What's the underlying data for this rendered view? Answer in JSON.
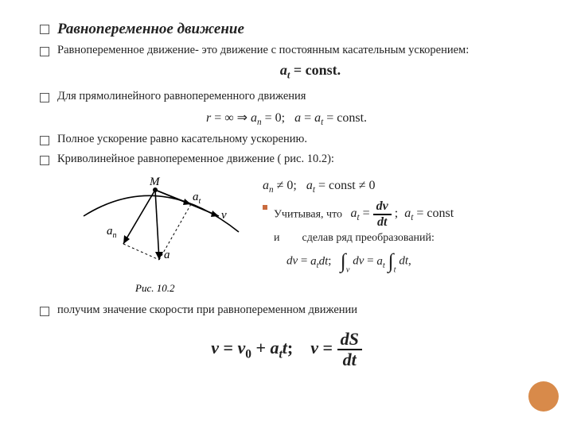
{
  "title": "Равнопеременное движение",
  "bullets": {
    "b1": "Равнопеременное движение- это движение с постоянным касательным ускорением:",
    "b2": "Для прямолинейного равнопеременного движения",
    "b3": "Полное ускорение равно касательному ускорению.",
    "b4": "Криволинейное равнопеременное движение ( рис. 10.2):",
    "b5": "получим значение скорости при равнопеременном движении"
  },
  "formulas": {
    "f1_html": "<i>a<sub>t</sub></i> = const.",
    "f2_html": "<i>r</i> = ∞ ⇒ <i>a<sub>n</sub></i> = 0;&nbsp;&nbsp;&nbsp;<i>a</i> = <i>a<sub>t</sub></i> = const.",
    "f3_html": "<i>a<sub>n</sub></i> ≠ 0;&nbsp;&nbsp;&nbsp;<i>a<sub>t</sub></i> = const ≠ 0",
    "f4_html": "<i>a<sub>t</sub></i> = <span class=\"frac\"><span class=\"top\"><i>dv</i></span><span class=\"bot\"><i>dt</i></span></span> ;&nbsp; <i>a<sub>t</sub></i> = const",
    "f5_html": "<i>dv</i> = <i>a<sub>t</sub>dt</i>;&nbsp;&nbsp; <span class=\"integral\">∫</span><sub style=\"vertical-align:-10px;\"><i>v</i></sub> <i>dv</i> = <i>a<sub>t</sub></i> <span class=\"integral\">∫</span><sub style=\"vertical-align:-10px;\"><i>t</i></sub> <i>dt</i>,",
    "f6_html": "<b><i>v</i> = <i>v</i><sub>0</sub> + <i>a<sub>t</sub>t</i>;&nbsp;&nbsp;&nbsp; <i>v</i> = </b><span class=\"frac\"><span class=\"top\"><i>dS</i></span><span class=\"bot\"><i>dt</i></span></span>"
  },
  "side": {
    "s1_prefix": "Учитывая, что",
    "s2_left": "и",
    "s2_right": "сделав ряд преобразований:"
  },
  "diagram": {
    "caption": "Рис. 10.2",
    "labels": {
      "M": "M",
      "v": "v",
      "at": "a",
      "at_sub": "t",
      "an": "a",
      "an_sub": "n",
      "a": "a"
    },
    "style": {
      "stroke": "#000000",
      "stroke_width": 1.6,
      "caption_style": "italic",
      "caption_size": 13
    }
  },
  "colors": {
    "accent_circle": "#d88a4a",
    "small_square_marker": "#c96b3f",
    "text": "#222222",
    "background": "#ffffff"
  }
}
